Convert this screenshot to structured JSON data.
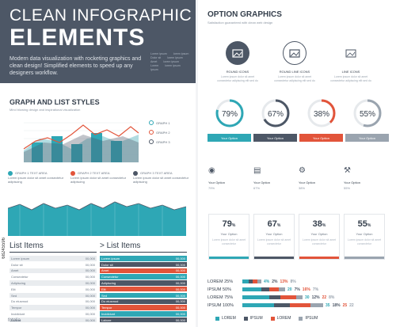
{
  "header": {
    "title_line1": "CLEAN INFOGRAPHIC",
    "title_line2": "ELEMENTS",
    "subtitle": "Modern data visualization with rocketing graphics and clean design! Simplified elements to speed up any designers workflow.",
    "legend_rows": [
      [
        "Lorem ipsum",
        "lorem ipsum"
      ],
      [
        "Dolor sit",
        "lorem ipsum"
      ],
      [
        "Amet",
        "lorem ipsum"
      ],
      [
        "Lorem",
        "lorem ipsum"
      ],
      [
        "Ipsum",
        ""
      ]
    ]
  },
  "graph": {
    "title": "GRAPH AND LIST STYLES",
    "subtitle": "Mind blowing design and inspirational visualization",
    "legend": [
      "GRAPH 1",
      "GRAPH 2",
      "GRAPH 3"
    ],
    "legend_colors": [
      "#2ea7b5",
      "#e2543a",
      "#4d5766"
    ],
    "info": [
      {
        "label": "GRAPH 1 TEXT AREA",
        "text": "Lorem ipsum dolor sit amet consectetur adipiscing",
        "color": "#2ea7b5"
      },
      {
        "label": "GRAPH 2 TEXT AREA",
        "text": "Lorem ipsum dolor sit amet consectetur adipiscing",
        "color": "#e2543a"
      },
      {
        "label": "GRAPH 3 TEXT AREA",
        "text": "Lorem ipsum dolor sit amet consectetur adipiscing",
        "color": "#4d5766"
      }
    ]
  },
  "lists": {
    "left_title": "List Items",
    "right_title": "> List Items",
    "left_items": [
      "Lorem ipsum",
      "Dolor sit",
      "Amet",
      "Consectetur",
      "Adipiscing",
      "Elit",
      "Sed",
      "Do eiusmod",
      "Tempor",
      "Incididunt",
      "Labore"
    ],
    "right_items": [
      "Lorem ipsum",
      "Dolor sit",
      "Amet",
      "Consectetur",
      "Adipiscing",
      "Elit",
      "Sed",
      "Do eiusmod",
      "Tempor",
      "Incididunt",
      "Labore"
    ],
    "value": "00,000"
  },
  "options": {
    "title": "OPTION GRAPHICS",
    "subtitle": "Satisfaction guaranteed with clean web design",
    "icons": [
      {
        "caption": "ROUND ICONS",
        "text": "Lorem ipsum dolor sit amet consectetur adipiscing elit sed do",
        "icon": "folder-image-icon"
      },
      {
        "caption": "ROUND LINE ICONS",
        "text": "Lorem ipsum dolor sit amet consectetur adipiscing elit sed do",
        "icon": "folder-image-icon"
      },
      {
        "caption": "LINE ICONS",
        "text": "Lorem ipsum dolor sit amet consectetur adipiscing elit sed do",
        "icon": "folder-image-icon"
      }
    ],
    "donuts": [
      {
        "value": "79%",
        "fraction": 0.79,
        "color": "#2ea7b5",
        "button": "Your Option"
      },
      {
        "value": "67%",
        "fraction": 0.67,
        "color": "#4d5766",
        "button": "Your Option"
      },
      {
        "value": "38%",
        "fraction": 0.38,
        "color": "#e2543a",
        "button": "Your Option"
      },
      {
        "value": "55%",
        "fraction": 0.55,
        "color": "#9aa4af",
        "button": "Your Option"
      }
    ],
    "glyph_items": [
      {
        "title": "Your Option",
        "pct": "79%",
        "icon": "globe-icon"
      },
      {
        "title": "Your Option",
        "pct": "67%",
        "icon": "presentation-icon"
      },
      {
        "title": "Your Option",
        "pct": "38%",
        "icon": "gear-icon"
      },
      {
        "title": "Your Option",
        "pct": "55%",
        "icon": "tools-icon"
      }
    ],
    "cards": [
      {
        "pct": "79",
        "opt": "Your Option",
        "desc": "Lorem ipsum dolor sit amet consectetur",
        "color": "#2ea7b5"
      },
      {
        "pct": "67",
        "opt": "Your Option",
        "desc": "Lorem ipsum dolor sit amet consectetur",
        "color": "#4d5766"
      },
      {
        "pct": "38",
        "opt": "Your Option",
        "desc": "Lorem ipsum dolor sit amet consectetur",
        "color": "#e2543a"
      },
      {
        "pct": "55",
        "opt": "Your Option",
        "desc": "Lorem ipsum dolor sit amet consectetur",
        "color": "#9aa4af"
      }
    ],
    "percent_sign": "%"
  },
  "stacked": {
    "rows": [
      {
        "label": "LOREM 25%",
        "values": [
          "4%",
          "2%",
          "13%",
          "8%"
        ]
      },
      {
        "label": "IPSUM 50%",
        "values": [
          "20",
          "7%",
          "16%",
          "7%"
        ]
      },
      {
        "label": "LOREM 75%",
        "values": [
          "30",
          "12%",
          "22",
          "8%"
        ]
      },
      {
        "label": "IPSUM 100%",
        "values": [
          "35",
          "18%",
          "25",
          "22"
        ]
      }
    ],
    "legend": [
      "LOREM",
      "IPSUM",
      "LOREM",
      "IPSUM"
    ],
    "colors": [
      "#2ea7b5",
      "#4d5766",
      "#e2543a",
      "#9aa4af"
    ]
  },
  "watermark": "68245596",
  "watermark2": "fotolia"
}
